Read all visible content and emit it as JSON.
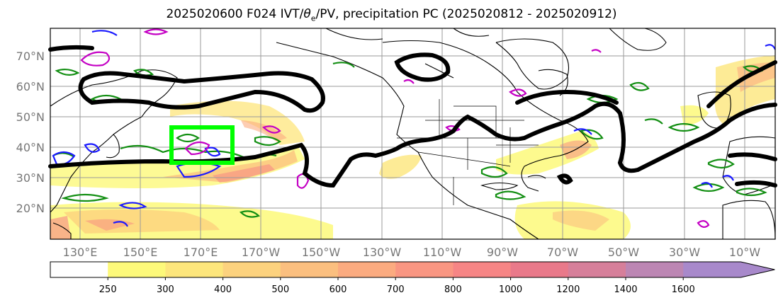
{
  "title": "2025020600 F024 IVT/θe/PV, precipitation PC (2025020812 - 2025020912)",
  "title_parts": {
    "prefix": "2025020600 F024 IVT/",
    "theta": "θ",
    "sub": "e",
    "suffix": "/PV, precipitation PC (2025020812 - 2025020912)"
  },
  "lat_labels": [
    "70°N",
    "60°N",
    "50°N",
    "40°N",
    "30°N",
    "20°N"
  ],
  "lon_labels": [
    "130°E",
    "150°E",
    "170°E",
    "170°W",
    "150°W",
    "130°W",
    "110°W",
    "90°W",
    "70°W",
    "50°W",
    "30°W",
    "10°W"
  ],
  "colorbar": {
    "ticks": [
      "250",
      "300",
      "400",
      "500",
      "600",
      "700",
      "800",
      "1000",
      "1200",
      "1400",
      "1600"
    ],
    "colors": [
      "#ffffff",
      "#fdf97a",
      "#fde67c",
      "#fcd27e",
      "#fbbf7f",
      "#fbab80",
      "#f99682",
      "#f68585",
      "#e9798a",
      "#d67f9a",
      "#bc86b3",
      "#a889cb"
    ]
  },
  "highlight_box_color": "#00ff00"
}
